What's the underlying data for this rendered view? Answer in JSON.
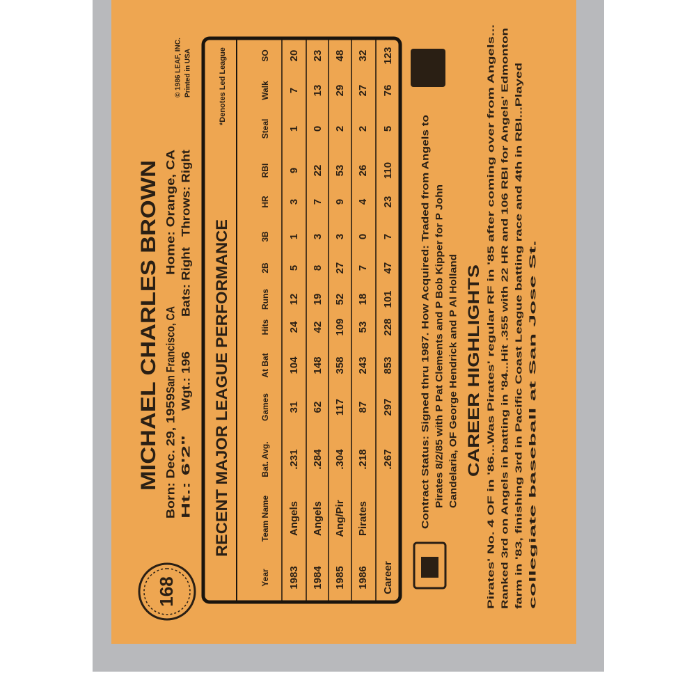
{
  "card": {
    "number": "168",
    "name": "MICHAEL CHARLES BROWN",
    "bio_line1": [
      "Born: Dec. 29, 1959",
      "San Francisco, CA",
      "Home: Orange, CA"
    ],
    "bio_line2": [
      "Ht.: 6'2\"",
      "Wgt.: 196",
      "Bats: Right",
      "Throws: Right"
    ],
    "copyright": [
      "© 1986 LEAF, INC.",
      "Printed in USA"
    ]
  },
  "table": {
    "title": "RECENT MAJOR LEAGUE PERFORMANCE",
    "note": "*Denotes Led League",
    "columns": [
      "Year",
      "Team Name",
      "Bat. Avg.",
      "Games",
      "At Bat",
      "Hits",
      "Runs",
      "2B",
      "3B",
      "HR",
      "RBI",
      "Steal",
      "Walk",
      "SO"
    ],
    "rows": [
      [
        "1983",
        "Angels",
        ".231",
        "31",
        "104",
        "24",
        "12",
        "5",
        "1",
        "3",
        "9",
        "1",
        "7",
        "20"
      ],
      [
        "1984",
        "Angels",
        ".284",
        "62",
        "148",
        "42",
        "19",
        "8",
        "3",
        "7",
        "22",
        "0",
        "13",
        "23"
      ],
      [
        "1985",
        "Ang/Pir",
        ".304",
        "117",
        "358",
        "109",
        "52",
        "27",
        "3",
        "9",
        "53",
        "2",
        "29",
        "48"
      ],
      [
        "1986",
        "Pirates",
        ".218",
        "87",
        "243",
        "53",
        "18",
        "7",
        "0",
        "4",
        "26",
        "2",
        "27",
        "32"
      ],
      [
        "Career",
        "",
        ".267",
        "297",
        "853",
        "228",
        "101",
        "47",
        "7",
        "23",
        "110",
        "5",
        "76",
        "123"
      ]
    ]
  },
  "contract": [
    "Contract Status: Signed thru 1987. How Acquired: Traded from Angels to",
    "Pirates 8/2/85 with P Pat Clements and P Bob Kipper for P John",
    "Candelaria, OF George Hendrick and P Al Holland"
  ],
  "highlights": {
    "title": "CAREER HIGHLIGHTS",
    "lines": [
      "Pirates' No. 4 OF in '86...Was Pirates' regular RF in '85 after coming over from Angels...",
      "Ranked 3rd on Angels in batting in '84...Hit .355 with 22 HR and 106 RBI for Angels' Edmonton",
      "farm in '83, finishing 3rd in Pacific Coast League batting race and 4th in RBI...Played",
      "collegiate baseball at San Jose St."
    ]
  }
}
